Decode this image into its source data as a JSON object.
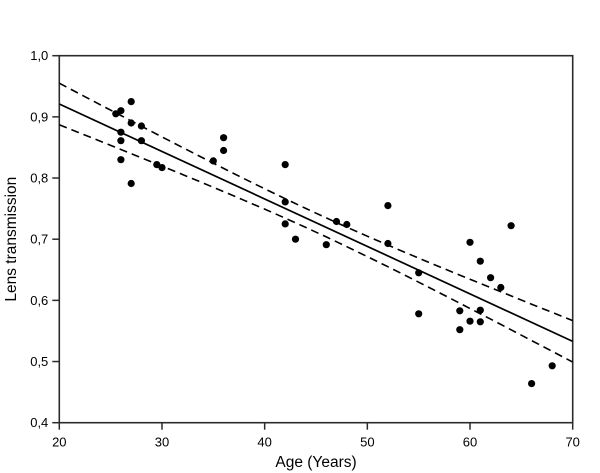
{
  "figure": {
    "background": "#ffffff",
    "frame_color": "#2b2b2b",
    "text_color": "#000000"
  },
  "chart_data": {
    "type": "scatter",
    "title": "",
    "xlabel": "Age (Years)",
    "ylabel": "Lens transmission",
    "xlim": [
      20,
      70
    ],
    "ylim": [
      0.4,
      1.0
    ],
    "x_ticks": [
      20,
      30,
      40,
      50,
      60,
      70
    ],
    "x_tick_labels": [
      "20",
      "30",
      "40",
      "50",
      "60",
      "70"
    ],
    "y_ticks": [
      0.4,
      0.5,
      0.6,
      0.7,
      0.8,
      0.9,
      1.0
    ],
    "y_tick_labels": [
      "0,4",
      "0,5",
      "0,6",
      "0,7",
      "0,8",
      "0,9",
      "1,0"
    ],
    "decimal_separator": ",",
    "grid": false,
    "legend": "none",
    "marker": {
      "shape": "circle",
      "color": "#000000",
      "radius_px": 3.6
    },
    "points": [
      [
        27,
        0.925
      ],
      [
        26,
        0.91
      ],
      [
        25.5,
        0.905
      ],
      [
        27,
        0.89
      ],
      [
        28,
        0.885
      ],
      [
        26,
        0.875
      ],
      [
        26,
        0.861
      ],
      [
        28,
        0.861
      ],
      [
        26,
        0.83
      ],
      [
        29.5,
        0.822
      ],
      [
        30,
        0.817
      ],
      [
        27,
        0.791
      ],
      [
        36,
        0.866
      ],
      [
        36,
        0.845
      ],
      [
        35,
        0.828
      ],
      [
        42,
        0.822
      ],
      [
        42,
        0.761
      ],
      [
        42,
        0.725
      ],
      [
        43,
        0.7
      ],
      [
        47,
        0.729
      ],
      [
        46,
        0.691
      ],
      [
        48,
        0.724
      ],
      [
        52,
        0.755
      ],
      [
        52,
        0.693
      ],
      [
        55,
        0.645
      ],
      [
        55,
        0.578
      ],
      [
        60,
        0.695
      ],
      [
        61,
        0.664
      ],
      [
        64,
        0.722
      ],
      [
        62,
        0.637
      ],
      [
        63,
        0.621
      ],
      [
        59,
        0.583
      ],
      [
        61,
        0.584
      ],
      [
        60,
        0.566
      ],
      [
        61,
        0.565
      ],
      [
        59,
        0.552
      ],
      [
        68,
        0.493
      ],
      [
        66,
        0.464
      ]
    ],
    "regression_line": {
      "style": "solid",
      "color": "#000000",
      "v_at_20": 0.921,
      "v_at_70": 0.533
    },
    "confidence_band": {
      "style": "dashed",
      "color": "#000000",
      "center_age": 45,
      "offset_at_center": 0.0155,
      "offset_at_edge": 0.034
    }
  }
}
